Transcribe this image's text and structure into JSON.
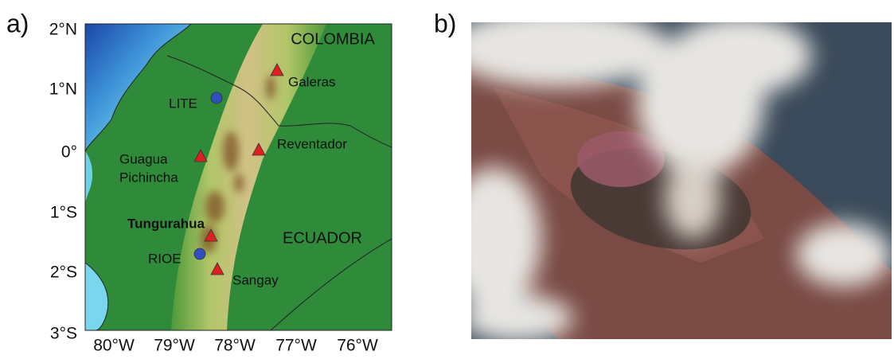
{
  "panel_a": {
    "label": "a)",
    "lat_labels": [
      "2°N",
      "1°N",
      "0°",
      "1°S",
      "2°S",
      "3°S"
    ],
    "lon_labels": [
      "80°W",
      "79°W",
      "78°W",
      "77°W",
      "76°W"
    ],
    "countries": [
      "COLOMBIA",
      "ECUADOR"
    ],
    "volcanoes": [
      "Galeras",
      "Reventador",
      "Guagua",
      "Pichincha",
      "Tungurahua",
      "Sangay"
    ],
    "stations": [
      "LITE",
      "RIOE"
    ]
  },
  "panel_b": {
    "label": "b)"
  }
}
